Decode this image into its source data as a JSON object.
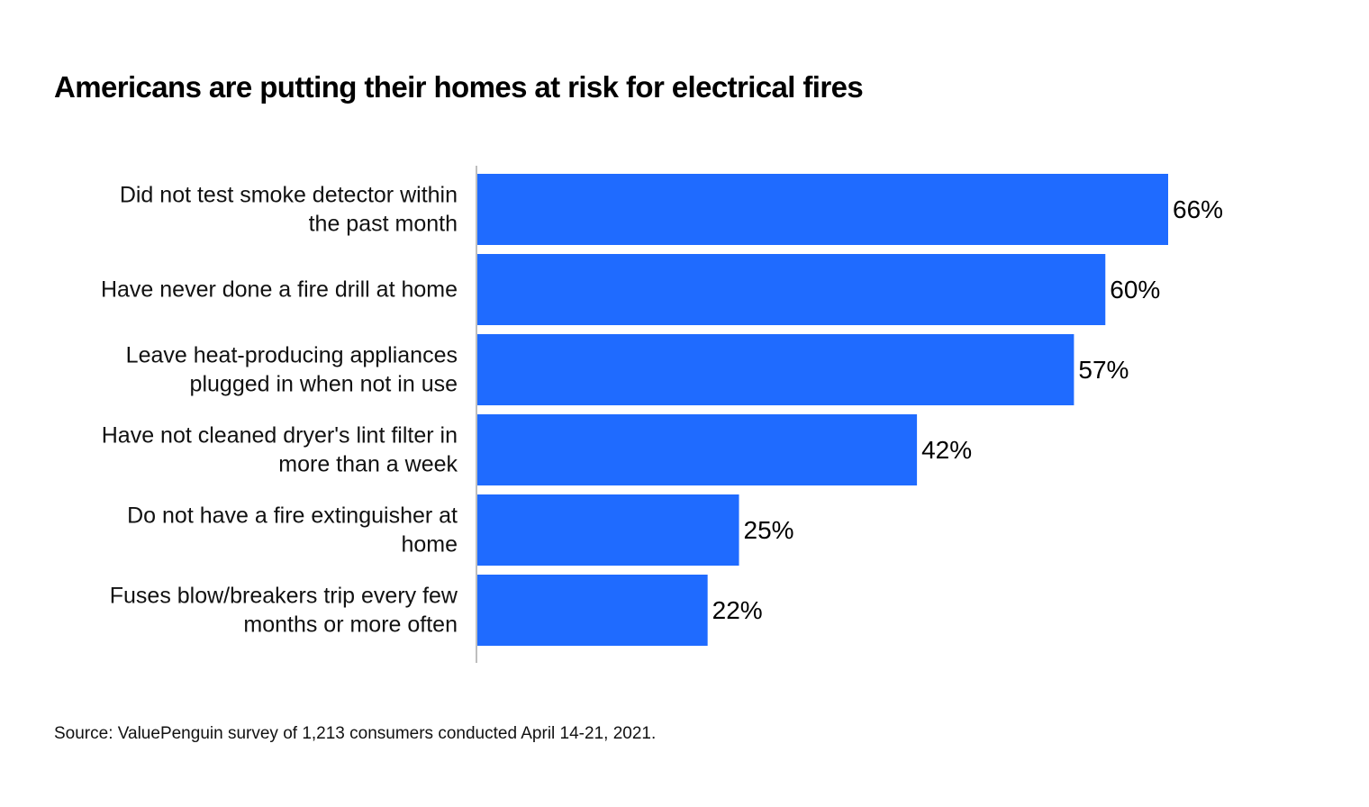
{
  "title": "Americans are putting their homes at risk for electrical fires",
  "source": "Source: ValuePenguin survey of 1,213 consumers conducted April 14-21, 2021.",
  "colors": {
    "bar": "#1f6bff",
    "axis": "#a8a8a8"
  },
  "chart_data": {
    "type": "bar",
    "orientation": "horizontal",
    "categories": [
      [
        "Did not test smoke detector within",
        "the past month"
      ],
      [
        "Have never done a fire drill at home"
      ],
      [
        "Leave heat-producing appliances",
        "plugged in when not in use"
      ],
      [
        "Have not cleaned dryer's lint filter in",
        "more than a week"
      ],
      [
        "Do not have a fire extinguisher at",
        "home"
      ],
      [
        "Fuses blow/breakers trip every few",
        "months or more often"
      ]
    ],
    "values": [
      66,
      60,
      57,
      42,
      25,
      22
    ],
    "value_labels": [
      "66%",
      "60%",
      "57%",
      "42%",
      "25%",
      "22%"
    ],
    "xlim": [
      0,
      100
    ],
    "grid": false,
    "legend": false
  }
}
